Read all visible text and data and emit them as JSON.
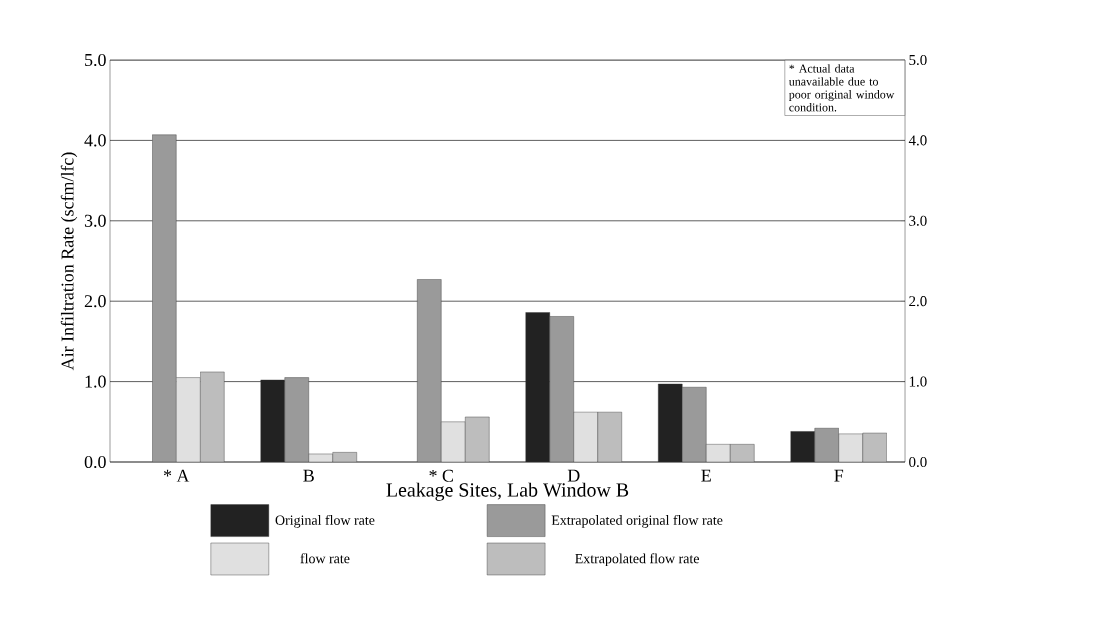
{
  "chart_data": {
    "type": "bar",
    "xlabel": "Leakage Sites, Lab Window B",
    "ylabel": "Air Infiltration Rate (scfm/lfc)",
    "categories": [
      "* A",
      "B",
      "* C",
      "D",
      "E",
      "F"
    ],
    "series": [
      {
        "name": "Original flow rate",
        "color": "#222222",
        "values": [
          null,
          1.02,
          null,
          1.86,
          0.97,
          0.38
        ]
      },
      {
        "name": "Extrapolated original flow rate",
        "color": "#9a9a9a",
        "values": [
          4.07,
          1.05,
          2.27,
          1.81,
          0.93,
          0.42
        ]
      },
      {
        "name": "flow rate",
        "color": "#e0e0e0",
        "values": [
          1.05,
          0.1,
          0.5,
          0.62,
          0.22,
          0.35
        ]
      },
      {
        "name": "Extrapolated flow rate",
        "color": "#bdbdbd",
        "values": [
          1.12,
          0.12,
          0.56,
          0.62,
          0.22,
          0.36
        ]
      }
    ],
    "ylim": [
      0,
      5
    ],
    "yticks": [
      {
        "value": 0,
        "label": "0.0"
      },
      {
        "value": 1,
        "label": "1.0"
      },
      {
        "value": 2,
        "label": "2.0"
      },
      {
        "value": 3,
        "label": "3.0"
      },
      {
        "value": 4,
        "label": "4.0"
      },
      {
        "value": 5,
        "label": "5.0"
      }
    ],
    "y2lim": [
      0,
      5
    ],
    "y2ticks": [
      {
        "value": 0,
        "label": "0.0"
      },
      {
        "value": 1,
        "label": "1.0"
      },
      {
        "value": 2,
        "label": "2.0"
      },
      {
        "value": 3,
        "label": "3.0"
      },
      {
        "value": 4,
        "label": "4.0"
      },
      {
        "value": 5,
        "label": "5.0"
      }
    ],
    "grid": "y",
    "legend": "bottom",
    "annotations": [
      "* Actual data unavailable due to poor original window condition."
    ]
  }
}
